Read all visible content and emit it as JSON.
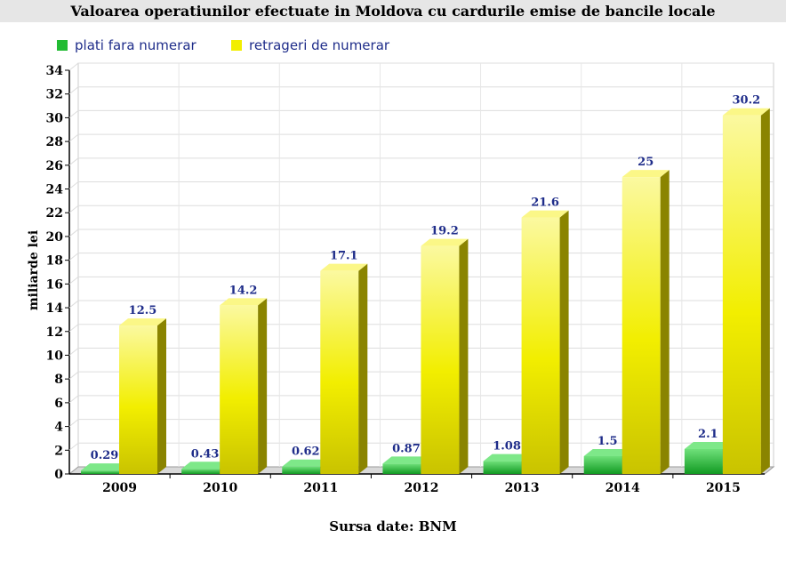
{
  "chart_data": {
    "type": "bar",
    "title": "Valoarea operatiunilor efectuate in Moldova cu cardurile emise de bancile locale",
    "categories": [
      "2009",
      "2010",
      "2011",
      "2012",
      "2013",
      "2014",
      "2015"
    ],
    "series": [
      {
        "name": "plati fara numerar",
        "values": [
          0.29,
          0.43,
          0.62,
          0.87,
          1.08,
          1.5,
          2.1
        ],
        "labels": [
          "0.29",
          "0.43",
          "0.62",
          "0.87",
          "1.08",
          "1.5",
          "2.1"
        ],
        "color": "#22bb33"
      },
      {
        "name": "retrageri de numerar",
        "values": [
          12.5,
          14.2,
          17.1,
          19.2,
          21.6,
          25,
          30.2
        ],
        "labels": [
          "12.5",
          "14.2",
          "17.1",
          "19.2",
          "21.6",
          "25",
          "30.2"
        ],
        "color": "#f2ee00"
      }
    ],
    "xlabel": "",
    "ylabel": "miliarde lei",
    "ylim": [
      0,
      34
    ],
    "yticks": [
      0,
      2,
      4,
      6,
      8,
      10,
      12,
      14,
      16,
      18,
      20,
      22,
      24,
      26,
      28,
      30,
      32,
      34
    ],
    "grid": true,
    "legend_position": "top-left",
    "source": "Sursa date: BNM"
  }
}
